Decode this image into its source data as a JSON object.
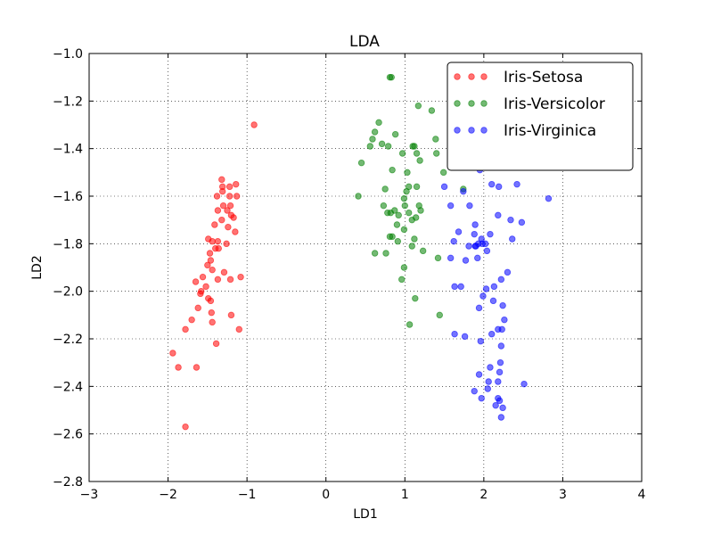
{
  "chart_data": {
    "type": "scatter",
    "title": "LDA",
    "xlabel": "LD1",
    "ylabel": "LD2",
    "xlim": [
      -3,
      4
    ],
    "ylim": [
      -2.8,
      -1.0
    ],
    "x_ticks": [
      -3,
      -2,
      -1,
      0,
      1,
      2,
      3,
      4
    ],
    "y_ticks": [
      -2.8,
      -2.6,
      -2.4,
      -2.2,
      -2.0,
      -1.8,
      -1.6,
      -1.4,
      -1.2,
      -1.0
    ],
    "x_tick_labels": [
      "−3",
      "−2",
      "−1",
      "0",
      "1",
      "2",
      "3",
      "4"
    ],
    "y_tick_labels": [
      "−2.8",
      "−2.6",
      "−2.4",
      "−2.2",
      "−2.0",
      "−1.8",
      "−1.6",
      "−1.4",
      "−1.2",
      "−1.0"
    ],
    "grid": true,
    "legend_position": "top-right",
    "series": [
      {
        "name": "Iris-Setosa",
        "color": "#ff0000",
        "points": [
          [
            -0.91,
            -1.3
          ],
          [
            -1.32,
            -1.53
          ],
          [
            -1.31,
            -1.56
          ],
          [
            -1.31,
            -1.58
          ],
          [
            -1.22,
            -1.56
          ],
          [
            -1.14,
            -1.55
          ],
          [
            -1.38,
            -1.6
          ],
          [
            -1.22,
            -1.6
          ],
          [
            -1.13,
            -1.6
          ],
          [
            -1.3,
            -1.64
          ],
          [
            -1.21,
            -1.64
          ],
          [
            -1.37,
            -1.66
          ],
          [
            -1.25,
            -1.66
          ],
          [
            -1.2,
            -1.68
          ],
          [
            -1.17,
            -1.69
          ],
          [
            -1.32,
            -1.7
          ],
          [
            -1.41,
            -1.72
          ],
          [
            -1.24,
            -1.73
          ],
          [
            -1.15,
            -1.75
          ],
          [
            -1.49,
            -1.78
          ],
          [
            -1.37,
            -1.79
          ],
          [
            -1.44,
            -1.79
          ],
          [
            -1.26,
            -1.8
          ],
          [
            -1.4,
            -1.82
          ],
          [
            -1.36,
            -1.82
          ],
          [
            -1.47,
            -1.84
          ],
          [
            -1.46,
            -1.87
          ],
          [
            -1.5,
            -1.89
          ],
          [
            -1.44,
            -1.91
          ],
          [
            -1.29,
            -1.92
          ],
          [
            -1.56,
            -1.94
          ],
          [
            -1.08,
            -1.94
          ],
          [
            -1.21,
            -1.95
          ],
          [
            -1.37,
            -1.95
          ],
          [
            -1.65,
            -1.96
          ],
          [
            -1.52,
            -1.98
          ],
          [
            -1.58,
            -2.0
          ],
          [
            -1.59,
            -2.01
          ],
          [
            -1.49,
            -2.03
          ],
          [
            -1.46,
            -2.04
          ],
          [
            -1.62,
            -2.07
          ],
          [
            -1.45,
            -2.09
          ],
          [
            -1.2,
            -2.1
          ],
          [
            -1.7,
            -2.12
          ],
          [
            -1.44,
            -2.13
          ],
          [
            -1.1,
            -2.16
          ],
          [
            -1.78,
            -2.16
          ],
          [
            -1.39,
            -2.22
          ],
          [
            -1.94,
            -2.26
          ],
          [
            -1.87,
            -2.32
          ],
          [
            -1.64,
            -2.32
          ],
          [
            -1.78,
            -2.57
          ]
        ]
      },
      {
        "name": "Iris-Versicolor",
        "color": "#008000",
        "points": [
          [
            0.81,
            -1.1
          ],
          [
            0.83,
            -1.1
          ],
          [
            1.17,
            -1.22
          ],
          [
            1.34,
            -1.24
          ],
          [
            1.66,
            -1.23
          ],
          [
            0.67,
            -1.29
          ],
          [
            0.62,
            -1.33
          ],
          [
            0.88,
            -1.34
          ],
          [
            0.59,
            -1.36
          ],
          [
            1.39,
            -1.36
          ],
          [
            0.71,
            -1.38
          ],
          [
            1.1,
            -1.39
          ],
          [
            0.79,
            -1.39
          ],
          [
            1.12,
            -1.39
          ],
          [
            0.56,
            -1.39
          ],
          [
            0.97,
            -1.42
          ],
          [
            1.15,
            -1.42
          ],
          [
            1.4,
            -1.42
          ],
          [
            0.45,
            -1.46
          ],
          [
            1.19,
            -1.45
          ],
          [
            0.84,
            -1.49
          ],
          [
            1.03,
            -1.5
          ],
          [
            1.49,
            -1.5
          ],
          [
            0.75,
            -1.57
          ],
          [
            1.05,
            -1.56
          ],
          [
            1.15,
            -1.56
          ],
          [
            1.02,
            -1.58
          ],
          [
            0.41,
            -1.6
          ],
          [
            0.99,
            -1.61
          ],
          [
            1.74,
            -1.57
          ],
          [
            1.0,
            -1.64
          ],
          [
            0.73,
            -1.64
          ],
          [
            1.18,
            -1.64
          ],
          [
            1.2,
            -1.66
          ],
          [
            0.87,
            -1.66
          ],
          [
            0.82,
            -1.67
          ],
          [
            1.05,
            -1.67
          ],
          [
            0.78,
            -1.67
          ],
          [
            0.92,
            -1.68
          ],
          [
            1.14,
            -1.69
          ],
          [
            1.09,
            -1.7
          ],
          [
            0.9,
            -1.72
          ],
          [
            0.99,
            -1.74
          ],
          [
            0.84,
            -1.77
          ],
          [
            0.81,
            -1.77
          ],
          [
            1.12,
            -1.78
          ],
          [
            0.91,
            -1.79
          ],
          [
            1.09,
            -1.81
          ],
          [
            1.23,
            -1.83
          ],
          [
            0.62,
            -1.84
          ],
          [
            0.76,
            -1.84
          ],
          [
            1.42,
            -1.86
          ],
          [
            0.99,
            -1.9
          ],
          [
            0.96,
            -1.95
          ],
          [
            1.13,
            -2.03
          ],
          [
            1.44,
            -2.1
          ],
          [
            1.06,
            -2.14
          ]
        ]
      },
      {
        "name": "Iris-Virginica",
        "color": "#0000ff",
        "points": [
          [
            1.73,
            -1.23
          ],
          [
            1.84,
            -1.24
          ],
          [
            1.93,
            -1.29
          ],
          [
            2.18,
            -1.29
          ],
          [
            1.84,
            -1.3
          ],
          [
            2.12,
            -1.42
          ],
          [
            1.65,
            -1.43
          ],
          [
            1.95,
            -1.49
          ],
          [
            2.42,
            -1.55
          ],
          [
            1.5,
            -1.56
          ],
          [
            1.74,
            -1.58
          ],
          [
            2.1,
            -1.55
          ],
          [
            2.19,
            -1.56
          ],
          [
            2.82,
            -1.61
          ],
          [
            1.82,
            -1.64
          ],
          [
            1.58,
            -1.64
          ],
          [
            2.18,
            -1.68
          ],
          [
            2.48,
            -1.71
          ],
          [
            1.89,
            -1.72
          ],
          [
            2.34,
            -1.7
          ],
          [
            1.88,
            -1.76
          ],
          [
            1.68,
            -1.75
          ],
          [
            2.08,
            -1.76
          ],
          [
            1.97,
            -1.78
          ],
          [
            2.36,
            -1.78
          ],
          [
            1.93,
            -1.8
          ],
          [
            1.98,
            -1.8
          ],
          [
            1.62,
            -1.79
          ],
          [
            2.02,
            -1.8
          ],
          [
            1.81,
            -1.81
          ],
          [
            1.89,
            -1.81
          ],
          [
            1.9,
            -1.81
          ],
          [
            2.04,
            -1.83
          ],
          [
            1.58,
            -1.86
          ],
          [
            1.77,
            -1.87
          ],
          [
            1.92,
            -1.86
          ],
          [
            2.3,
            -1.92
          ],
          [
            2.22,
            -1.95
          ],
          [
            2.13,
            -1.98
          ],
          [
            1.71,
            -1.98
          ],
          [
            2.03,
            -1.99
          ],
          [
            1.63,
            -1.98
          ],
          [
            1.99,
            -2.02
          ],
          [
            2.12,
            -2.04
          ],
          [
            1.94,
            -2.07
          ],
          [
            2.24,
            -2.06
          ],
          [
            2.26,
            -2.12
          ],
          [
            2.23,
            -2.16
          ],
          [
            2.18,
            -2.16
          ],
          [
            2.1,
            -2.18
          ],
          [
            1.63,
            -2.18
          ],
          [
            1.76,
            -2.19
          ],
          [
            1.96,
            -2.21
          ],
          [
            2.22,
            -2.23
          ],
          [
            2.21,
            -2.3
          ],
          [
            2.08,
            -2.32
          ],
          [
            1.94,
            -2.35
          ],
          [
            2.06,
            -2.38
          ],
          [
            2.18,
            -2.38
          ],
          [
            2.2,
            -2.34
          ],
          [
            2.51,
            -2.39
          ],
          [
            1.88,
            -2.42
          ],
          [
            2.15,
            -2.48
          ],
          [
            2.24,
            -2.49
          ],
          [
            1.97,
            -2.45
          ],
          [
            2.22,
            -2.53
          ],
          [
            2.18,
            -2.45
          ],
          [
            2.2,
            -2.46
          ],
          [
            2.05,
            -2.41
          ]
        ]
      }
    ]
  }
}
